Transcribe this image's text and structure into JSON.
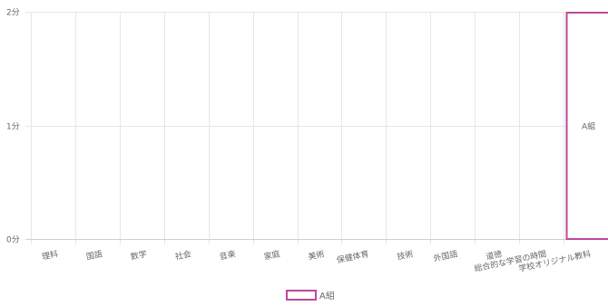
{
  "chart_data": {
    "type": "bar",
    "categories": [
      "理科",
      "国語",
      "数学",
      "社会",
      "音楽",
      "家庭",
      "美術",
      "保健体育",
      "技術",
      "外国語",
      "道徳",
      "総合的な学習の時間",
      "学校オリジナル教科"
    ],
    "series": [
      {
        "name": "A組",
        "values": [
          0,
          0,
          0,
          0,
          0,
          0,
          0,
          0,
          0,
          0,
          0,
          0,
          2
        ],
        "color": "#c0479b"
      }
    ],
    "y_ticks": [
      "0分",
      "1分",
      "2分"
    ],
    "ylim": [
      0,
      2
    ],
    "bar_label": "A組",
    "grid": true,
    "legend_position": "bottom"
  }
}
